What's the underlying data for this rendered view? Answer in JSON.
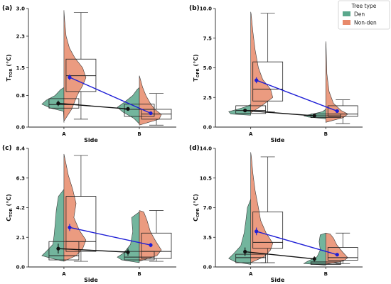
{
  "legend": {
    "title": "Tree type",
    "entries": [
      {
        "name": "Den",
        "color": "#5aa88c"
      },
      {
        "name": "Non-den",
        "color": "#e8896a"
      }
    ]
  },
  "colors": {
    "den": "#5aa88c",
    "non_den": "#e8896a",
    "den_mean_line": "#111111",
    "non_den_mean_line": "#1f1fd6"
  },
  "chart_data": [
    {
      "panel_label": "(a)",
      "type": "violin-box",
      "categories": [
        "A",
        "B"
      ],
      "xlabel": "Side",
      "ylabel_main": "T",
      "ylabel_sub": "TOR",
      "ylabel_unit": "(°C)",
      "ylim": [
        0,
        3.0
      ],
      "yticks": [
        "0.0",
        "0.8",
        "1.5",
        "2.3",
        "3.0"
      ],
      "series": [
        {
          "name": "Den",
          "mean": [
            0.6,
            0.46
          ],
          "mean_err": [
            0.07,
            0.05
          ],
          "box": [
            {
              "q1": 0.48,
              "median": 0.57,
              "q3": 0.72
            },
            {
              "q1": 0.27,
              "median": 0.45,
              "q3": 0.58
            }
          ],
          "violin": [
            [
              [
                0.12,
                0.0
              ],
              [
                0.4,
                0.02
              ],
              [
                0.48,
                0.6
              ],
              [
                0.58,
                1.0
              ],
              [
                0.68,
                0.8
              ],
              [
                0.8,
                0.4
              ],
              [
                0.95,
                0.15
              ],
              [
                1.0,
                0.0
              ]
            ],
            [
              [
                0.08,
                0.0
              ],
              [
                0.22,
                0.25
              ],
              [
                0.38,
                0.75
              ],
              [
                0.5,
                1.0
              ],
              [
                0.62,
                0.7
              ],
              [
                0.8,
                0.3
              ],
              [
                0.95,
                0.1
              ],
              [
                1.0,
                0.0
              ]
            ]
          ]
        },
        {
          "name": "Non-den",
          "mean": [
            1.26,
            0.35
          ],
          "mean_err": [
            0.07,
            0.04
          ],
          "box": [
            {
              "min": 0.2,
              "q1": 0.9,
              "median": 1.3,
              "q3": 1.72,
              "max": 2.9
            },
            {
              "min": 0.05,
              "q1": 0.2,
              "median": 0.33,
              "q3": 0.45,
              "max": 0.85
            }
          ],
          "violin": [
            [
              [
                0.15,
                0.0
              ],
              [
                0.45,
                0.35
              ],
              [
                0.8,
                0.6
              ],
              [
                1.05,
                0.85
              ],
              [
                1.25,
                1.0
              ],
              [
                1.5,
                0.85
              ],
              [
                1.75,
                0.5
              ],
              [
                2.0,
                0.25
              ],
              [
                2.3,
                0.1
              ],
              [
                2.7,
                0.03
              ],
              [
                2.95,
                0.0
              ]
            ],
            [
              [
                0.05,
                0.0
              ],
              [
                0.2,
                0.9
              ],
              [
                0.32,
                1.0
              ],
              [
                0.45,
                0.7
              ],
              [
                0.6,
                0.5
              ],
              [
                0.8,
                0.3
              ],
              [
                1.0,
                0.15
              ],
              [
                1.2,
                0.05
              ],
              [
                1.3,
                0.0
              ]
            ]
          ]
        }
      ]
    },
    {
      "panel_label": "(b)",
      "type": "violin-box",
      "categories": [
        "A",
        "B"
      ],
      "xlabel": "Side",
      "ylabel_main": "T",
      "ylabel_sub": "OPR",
      "ylabel_unit": "(°C)",
      "ylim": [
        0,
        10.0
      ],
      "yticks": [
        "0.0",
        "2.5",
        "5.0",
        "7.5",
        "10.0"
      ],
      "series": [
        {
          "name": "Den",
          "mean": [
            1.4,
            0.95
          ],
          "mean_err": [
            0.1,
            0.05
          ],
          "box": [
            {
              "q1": 1.15,
              "median": 1.4,
              "q3": 1.8
            },
            {
              "q1": 0.8,
              "median": 0.95,
              "q3": 1.1
            }
          ],
          "violin": [
            [
              [
                1.0,
                0.0
              ],
              [
                1.1,
                0.9
              ],
              [
                1.3,
                1.0
              ],
              [
                1.5,
                0.6
              ],
              [
                1.7,
                0.25
              ],
              [
                1.9,
                0.0
              ]
            ],
            [
              [
                0.7,
                0.0
              ],
              [
                0.85,
                0.8
              ],
              [
                0.95,
                1.0
              ],
              [
                1.1,
                0.6
              ],
              [
                1.3,
                0.15
              ],
              [
                1.5,
                0.0
              ]
            ]
          ]
        },
        {
          "name": "Non-den",
          "mean": [
            3.95,
            1.35
          ],
          "mean_err": [
            0.25,
            0.15
          ],
          "box": [
            {
              "min": 1.3,
              "q1": 2.2,
              "median": 3.2,
              "q3": 5.5,
              "max": 9.6
            },
            {
              "min": 0.3,
              "q1": 0.9,
              "median": 1.1,
              "q3": 1.8,
              "max": 2.3
            }
          ],
          "violin": [
            [
              [
                1.2,
                0.0
              ],
              [
                1.8,
                0.5
              ],
              [
                2.5,
                1.0
              ],
              [
                3.2,
                0.9
              ],
              [
                4.0,
                0.55
              ],
              [
                5.0,
                0.35
              ],
              [
                6.5,
                0.2
              ],
              [
                8.0,
                0.1
              ],
              [
                9.5,
                0.02
              ],
              [
                9.7,
                0.0
              ]
            ],
            [
              [
                0.4,
                0.0
              ],
              [
                0.8,
                0.8
              ],
              [
                1.1,
                1.0
              ],
              [
                1.4,
                0.7
              ],
              [
                2.0,
                0.35
              ],
              [
                3.0,
                0.15
              ],
              [
                4.5,
                0.05
              ],
              [
                7.0,
                0.01
              ],
              [
                7.2,
                0.0
              ]
            ]
          ]
        }
      ]
    },
    {
      "panel_label": "(c)",
      "type": "violin-box",
      "categories": [
        "A",
        "B"
      ],
      "xlabel": "Side",
      "ylabel_main": "C",
      "ylabel_sub": "TOR",
      "ylabel_unit": "(°C)",
      "ylim": [
        0,
        8.4
      ],
      "yticks": [
        "0.0",
        "2.1",
        "4.2",
        "6.3",
        "8.4"
      ],
      "series": [
        {
          "name": "Den",
          "mean": [
            1.3,
            1.05
          ],
          "mean_err": [
            0.35,
            0.25
          ],
          "box": [
            {
              "q1": 0.5,
              "median": 0.8,
              "q3": 1.8
            },
            {
              "q1": 0.5,
              "median": 0.7,
              "q3": 1.1
            }
          ],
          "violin": [
            [
              [
                0.4,
                0.0
              ],
              [
                0.6,
                0.55
              ],
              [
                0.8,
                1.0
              ],
              [
                1.1,
                0.8
              ],
              [
                1.6,
                0.5
              ],
              [
                2.2,
                0.45
              ],
              [
                3.0,
                0.4
              ],
              [
                4.0,
                0.35
              ],
              [
                5.0,
                0.25
              ],
              [
                5.5,
                0.0
              ]
            ],
            [
              [
                0.3,
                0.0
              ],
              [
                0.5,
                0.8
              ],
              [
                0.7,
                1.0
              ],
              [
                1.0,
                0.7
              ],
              [
                1.6,
                0.4
              ],
              [
                2.5,
                0.3
              ],
              [
                3.5,
                0.35
              ],
              [
                3.9,
                0.0
              ]
            ]
          ]
        },
        {
          "name": "Non-den",
          "mean": [
            2.8,
            1.55
          ],
          "mean_err": [
            0.25,
            0.15
          ],
          "box": [
            {
              "min": 0.4,
              "q1": 1.1,
              "median": 1.8,
              "q3": 5.0,
              "max": 7.9
            },
            {
              "min": 0.4,
              "q1": 0.6,
              "median": 1.1,
              "q3": 2.4,
              "max": 4.0
            }
          ],
          "violin": [
            [
              [
                0.4,
                0.0
              ],
              [
                0.8,
                0.55
              ],
              [
                1.3,
                0.85
              ],
              [
                1.9,
                1.0
              ],
              [
                2.6,
                0.7
              ],
              [
                3.5,
                0.45
              ],
              [
                4.5,
                0.55
              ],
              [
                5.5,
                0.4
              ],
              [
                6.5,
                0.2
              ],
              [
                7.5,
                0.07
              ],
              [
                8.0,
                0.0
              ]
            ],
            [
              [
                0.4,
                0.0
              ],
              [
                0.8,
                0.8
              ],
              [
                1.2,
                1.0
              ],
              [
                1.8,
                0.75
              ],
              [
                2.5,
                0.5
              ],
              [
                3.3,
                0.35
              ],
              [
                3.9,
                0.2
              ],
              [
                4.0,
                0.0
              ]
            ]
          ]
        }
      ]
    },
    {
      "panel_label": "(d)",
      "type": "violin-box",
      "categories": [
        "A",
        "B"
      ],
      "xlabel": "Side",
      "ylabel_main": "C",
      "ylabel_sub": "OPR",
      "ylabel_unit": "(°C)",
      "ylim": [
        0,
        14.0
      ],
      "yticks": [
        "0.0",
        "3.5",
        "7.0",
        "10.5",
        "14.0"
      ],
      "series": [
        {
          "name": "Den",
          "mean": [
            1.8,
            0.95
          ],
          "mean_err": [
            0.5,
            0.3
          ],
          "box": [
            {
              "q1": 0.5,
              "median": 1.1,
              "q3": 1.5
            },
            {
              "q1": 0.3,
              "median": 0.45,
              "q3": 0.6
            }
          ],
          "violin": [
            [
              [
                0.3,
                0.0
              ],
              [
                0.6,
                0.7
              ],
              [
                1.0,
                1.0
              ],
              [
                1.5,
                0.8
              ],
              [
                2.5,
                0.45
              ],
              [
                4.0,
                0.3
              ],
              [
                5.5,
                0.22
              ],
              [
                7.0,
                0.15
              ],
              [
                8.0,
                0.0
              ]
            ],
            [
              [
                0.2,
                0.0
              ],
              [
                0.4,
                1.0
              ],
              [
                0.7,
                0.8
              ],
              [
                1.2,
                0.4
              ],
              [
                2.0,
                0.25
              ],
              [
                3.0,
                0.3
              ],
              [
                3.8,
                0.25
              ],
              [
                4.0,
                0.0
              ]
            ]
          ]
        },
        {
          "name": "Non-den",
          "mean": [
            4.2,
            1.45
          ],
          "mean_err": [
            0.45,
            0.2
          ],
          "box": [
            {
              "min": 0.5,
              "q1": 2.2,
              "median": 2.9,
              "q3": 6.5,
              "max": 13.0
            },
            {
              "min": 0.4,
              "q1": 0.8,
              "median": 1.1,
              "q3": 2.3,
              "max": 4.0
            }
          ],
          "violin": [
            [
              [
                0.5,
                0.0
              ],
              [
                1.2,
                0.6
              ],
              [
                2.0,
                0.9
              ],
              [
                2.8,
                1.0
              ],
              [
                4.0,
                0.7
              ],
              [
                5.5,
                0.45
              ],
              [
                7.0,
                0.35
              ],
              [
                9.0,
                0.2
              ],
              [
                11.0,
                0.1
              ],
              [
                13.0,
                0.03
              ],
              [
                13.5,
                0.0
              ]
            ],
            [
              [
                0.3,
                0.0
              ],
              [
                0.7,
                0.8
              ],
              [
                1.1,
                1.0
              ],
              [
                1.8,
                0.75
              ],
              [
                2.6,
                0.5
              ],
              [
                3.4,
                0.35
              ],
              [
                3.9,
                0.2
              ],
              [
                4.0,
                0.0
              ]
            ]
          ]
        }
      ]
    }
  ]
}
